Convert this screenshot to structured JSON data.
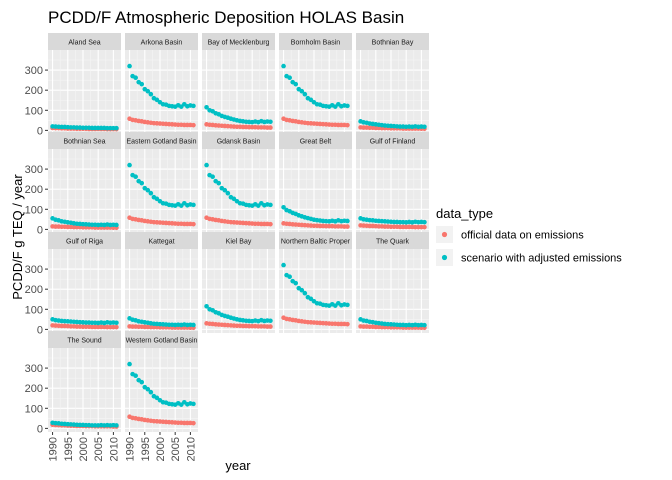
{
  "chart_data": {
    "type": "scatter",
    "title": "PCDD/F Atmospheric Deposition HOLAS Basin",
    "xlabel": "year",
    "ylabel": "PCDD/F g TEQ / year",
    "xlim": [
      1988.5,
      2012.5
    ],
    "ylim": [
      -18,
      400
    ],
    "x_ticks": [
      1990,
      1995,
      2000,
      2005,
      2010
    ],
    "x_tick_labels": [
      "1990",
      "1995",
      "2000",
      "2005",
      "2010"
    ],
    "y_ticks": [
      0,
      100,
      200,
      300
    ],
    "y_tick_labels": [
      "0",
      "100",
      "200",
      "300"
    ],
    "grid": true,
    "legend": {
      "title": "data_type",
      "position": "right",
      "entries": [
        {
          "label": "official data on emissions",
          "color": "#F8766D"
        },
        {
          "label": "scenario with adjusted emissions",
          "color": "#00BFC4"
        }
      ]
    },
    "years": [
      1990,
      1991,
      1992,
      1993,
      1994,
      1995,
      1996,
      1997,
      1998,
      1999,
      2000,
      2001,
      2002,
      2003,
      2004,
      2005,
      2006,
      2007,
      2008,
      2009,
      2010,
      2011
    ],
    "panels": [
      {
        "name": "Aland Sea",
        "official": [
          12,
          11,
          11,
          10,
          10,
          9,
          9,
          9,
          8,
          8,
          8,
          8,
          7,
          7,
          7,
          7,
          7,
          7,
          6,
          6,
          6,
          6
        ],
        "scenario": [
          20,
          19,
          18,
          17,
          17,
          16,
          15,
          15,
          14,
          14,
          13,
          13,
          13,
          12,
          12,
          12,
          12,
          12,
          11,
          11,
          11,
          11
        ]
      },
      {
        "name": "Arkona Basin",
        "official": [
          58,
          52,
          50,
          47,
          45,
          42,
          40,
          38,
          36,
          35,
          34,
          33,
          32,
          31,
          30,
          29,
          28,
          28,
          27,
          27,
          27,
          26
        ],
        "scenario": [
          320,
          270,
          262,
          240,
          230,
          205,
          195,
          180,
          160,
          152,
          140,
          130,
          128,
          122,
          120,
          118,
          125,
          118,
          130,
          120,
          124,
          122
        ]
      },
      {
        "name": "Bay of Mecklenburg",
        "official": [
          30,
          28,
          27,
          25,
          24,
          23,
          22,
          21,
          20,
          19,
          18,
          18,
          17,
          17,
          16,
          16,
          16,
          15,
          15,
          15,
          14,
          14
        ],
        "scenario": [
          115,
          100,
          95,
          85,
          80,
          72,
          67,
          63,
          58,
          54,
          50,
          47,
          45,
          43,
          42,
          41,
          44,
          41,
          46,
          42,
          44,
          43
        ]
      },
      {
        "name": "Bornholm Basin",
        "official": [
          58,
          52,
          50,
          47,
          45,
          42,
          40,
          38,
          36,
          35,
          34,
          33,
          32,
          31,
          30,
          29,
          28,
          28,
          27,
          27,
          27,
          26
        ],
        "scenario": [
          320,
          270,
          262,
          240,
          230,
          205,
          195,
          180,
          160,
          152,
          140,
          130,
          128,
          122,
          120,
          118,
          125,
          118,
          130,
          120,
          124,
          122
        ]
      },
      {
        "name": "Bothnian Bay",
        "official": [
          15,
          14,
          14,
          13,
          13,
          12,
          12,
          11,
          11,
          11,
          10,
          10,
          10,
          10,
          9,
          9,
          9,
          9,
          9,
          9,
          8,
          8
        ],
        "scenario": [
          45,
          40,
          38,
          34,
          32,
          30,
          28,
          26,
          24,
          23,
          22,
          21,
          20,
          19,
          19,
          18,
          19,
          18,
          20,
          18,
          19,
          18
        ]
      },
      {
        "name": "Bothnian Sea",
        "official": [
          15,
          14,
          14,
          13,
          13,
          12,
          12,
          11,
          11,
          11,
          10,
          10,
          10,
          10,
          9,
          9,
          9,
          9,
          9,
          9,
          8,
          8
        ],
        "scenario": [
          55,
          48,
          45,
          40,
          38,
          35,
          33,
          30,
          28,
          27,
          26,
          25,
          24,
          23,
          23,
          22,
          23,
          22,
          24,
          22,
          23,
          22
        ]
      },
      {
        "name": "Eastern Gotland Basin",
        "official": [
          58,
          52,
          50,
          47,
          45,
          42,
          40,
          38,
          36,
          35,
          34,
          33,
          32,
          31,
          30,
          29,
          28,
          28,
          27,
          27,
          27,
          26
        ],
        "scenario": [
          320,
          270,
          262,
          240,
          230,
          205,
          195,
          180,
          160,
          152,
          140,
          130,
          128,
          122,
          120,
          118,
          125,
          118,
          130,
          120,
          124,
          122
        ]
      },
      {
        "name": "Gdansk Basin",
        "official": [
          58,
          52,
          50,
          47,
          45,
          42,
          40,
          38,
          36,
          35,
          34,
          33,
          32,
          31,
          30,
          29,
          28,
          28,
          27,
          27,
          27,
          26
        ],
        "scenario": [
          320,
          270,
          262,
          240,
          230,
          205,
          195,
          180,
          160,
          152,
          140,
          130,
          128,
          122,
          120,
          118,
          125,
          118,
          130,
          120,
          124,
          122
        ]
      },
      {
        "name": "Great Belt",
        "official": [
          30,
          28,
          27,
          25,
          24,
          23,
          22,
          21,
          20,
          19,
          18,
          18,
          17,
          17,
          16,
          16,
          16,
          15,
          15,
          15,
          14,
          14
        ],
        "scenario": [
          110,
          96,
          90,
          82,
          77,
          70,
          65,
          60,
          56,
          52,
          48,
          46,
          44,
          42,
          41,
          40,
          43,
          40,
          45,
          41,
          43,
          42
        ]
      },
      {
        "name": "Gulf of Finland",
        "official": [
          20,
          19,
          18,
          17,
          17,
          16,
          15,
          15,
          14,
          14,
          13,
          13,
          13,
          12,
          12,
          12,
          12,
          12,
          11,
          11,
          11,
          11
        ],
        "scenario": [
          55,
          50,
          48,
          46,
          45,
          43,
          42,
          41,
          40,
          39,
          38,
          37,
          37,
          36,
          36,
          35,
          37,
          35,
          38,
          36,
          37,
          36
        ]
      },
      {
        "name": "Gulf of Riga",
        "official": [
          20,
          19,
          18,
          17,
          17,
          16,
          15,
          15,
          14,
          14,
          13,
          13,
          13,
          12,
          12,
          12,
          12,
          12,
          11,
          11,
          11,
          11
        ],
        "scenario": [
          50,
          46,
          44,
          42,
          41,
          40,
          39,
          38,
          37,
          36,
          35,
          34,
          34,
          33,
          33,
          32,
          34,
          32,
          35,
          33,
          34,
          33
        ]
      },
      {
        "name": "Kattegat",
        "official": [
          15,
          14,
          14,
          13,
          13,
          12,
          12,
          11,
          11,
          11,
          10,
          10,
          10,
          10,
          9,
          9,
          9,
          9,
          9,
          9,
          8,
          8
        ],
        "scenario": [
          55,
          48,
          45,
          40,
          38,
          35,
          33,
          30,
          28,
          27,
          26,
          25,
          24,
          23,
          23,
          22,
          23,
          22,
          24,
          22,
          23,
          22
        ]
      },
      {
        "name": "Kiel Bay",
        "official": [
          30,
          28,
          27,
          25,
          24,
          23,
          22,
          21,
          20,
          19,
          18,
          18,
          17,
          17,
          16,
          16,
          16,
          15,
          15,
          15,
          14,
          14
        ],
        "scenario": [
          115,
          100,
          95,
          85,
          80,
          72,
          67,
          63,
          58,
          54,
          50,
          47,
          45,
          43,
          42,
          41,
          44,
          41,
          46,
          42,
          44,
          43
        ]
      },
      {
        "name": "Northern Baltic Proper",
        "official": [
          58,
          52,
          50,
          47,
          45,
          42,
          40,
          38,
          36,
          35,
          34,
          33,
          32,
          31,
          30,
          29,
          28,
          28,
          27,
          27,
          27,
          26
        ],
        "scenario": [
          320,
          270,
          262,
          240,
          230,
          205,
          195,
          180,
          160,
          152,
          140,
          130,
          128,
          122,
          120,
          118,
          125,
          118,
          130,
          120,
          124,
          122
        ]
      },
      {
        "name": "The Quark",
        "official": [
          15,
          14,
          14,
          13,
          13,
          12,
          12,
          11,
          11,
          11,
          10,
          10,
          10,
          10,
          9,
          9,
          9,
          9,
          9,
          9,
          8,
          8
        ],
        "scenario": [
          50,
          44,
          42,
          38,
          36,
          33,
          31,
          29,
          27,
          26,
          25,
          24,
          23,
          22,
          22,
          21,
          22,
          21,
          23,
          21,
          22,
          21
        ]
      },
      {
        "name": "The Sound",
        "official": [
          18,
          17,
          16,
          15,
          15,
          14,
          13,
          13,
          12,
          12,
          12,
          11,
          11,
          11,
          10,
          10,
          10,
          10,
          10,
          10,
          9,
          9
        ],
        "scenario": [
          28,
          26,
          25,
          23,
          22,
          21,
          20,
          19,
          18,
          17,
          17,
          16,
          16,
          15,
          15,
          15,
          16,
          15,
          16,
          15,
          16,
          15
        ]
      },
      {
        "name": "Western Gotland Basin",
        "official": [
          58,
          52,
          50,
          47,
          45,
          42,
          40,
          38,
          36,
          35,
          34,
          33,
          32,
          31,
          30,
          29,
          28,
          28,
          27,
          27,
          27,
          26
        ],
        "scenario": [
          320,
          270,
          262,
          240,
          230,
          205,
          195,
          180,
          160,
          152,
          140,
          130,
          128,
          122,
          120,
          118,
          125,
          118,
          130,
          120,
          124,
          122
        ]
      }
    ]
  }
}
